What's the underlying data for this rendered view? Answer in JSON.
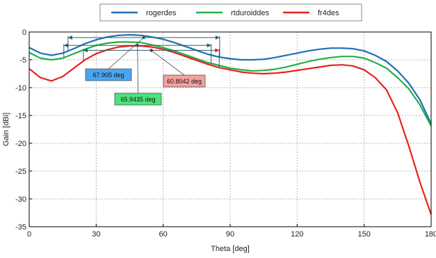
{
  "chart_data": {
    "type": "line",
    "xlabel": "Theta [deg]",
    "ylabel": "Gain [dBi]",
    "xlim": [
      0,
      180
    ],
    "ylim": [
      -35,
      0
    ],
    "xticks": [
      0,
      30,
      60,
      90,
      120,
      150,
      180
    ],
    "yticks": [
      0,
      -5,
      -10,
      -15,
      -20,
      -25,
      -30,
      -35
    ],
    "grid": true,
    "legend_position": "top-center",
    "series": [
      {
        "name": "rogerdes",
        "color": "#1f6fb5",
        "x": [
          0,
          5,
          10,
          15,
          20,
          25,
          30,
          35,
          40,
          45,
          50,
          55,
          60,
          65,
          70,
          75,
          80,
          85,
          90,
          95,
          100,
          105,
          110,
          115,
          120,
          125,
          130,
          135,
          140,
          145,
          150,
          155,
          160,
          165,
          170,
          175,
          180
        ],
        "y": [
          -2.8,
          -3.8,
          -4.2,
          -3.8,
          -3.0,
          -2.1,
          -1.4,
          -0.9,
          -0.6,
          -0.5,
          -0.6,
          -0.9,
          -1.3,
          -1.9,
          -2.6,
          -3.3,
          -4.0,
          -4.5,
          -4.8,
          -5.0,
          -5.0,
          -4.9,
          -4.6,
          -4.2,
          -3.8,
          -3.4,
          -3.1,
          -2.9,
          -2.9,
          -3.0,
          -3.4,
          -4.2,
          -5.3,
          -7.0,
          -9.2,
          -12.2,
          -16.5
        ]
      },
      {
        "name": "rtduroiddes",
        "color": "#22b04b",
        "x": [
          0,
          5,
          10,
          15,
          20,
          25,
          30,
          35,
          40,
          45,
          50,
          55,
          60,
          65,
          70,
          75,
          80,
          85,
          90,
          95,
          100,
          105,
          110,
          115,
          120,
          125,
          130,
          135,
          140,
          145,
          150,
          155,
          160,
          165,
          170,
          175,
          180
        ],
        "y": [
          -3.7,
          -4.7,
          -5.0,
          -4.7,
          -3.9,
          -3.1,
          -2.4,
          -2.0,
          -1.8,
          -1.8,
          -1.9,
          -2.3,
          -2.8,
          -3.4,
          -4.1,
          -4.8,
          -5.5,
          -6.0,
          -6.5,
          -6.8,
          -7.0,
          -6.9,
          -6.7,
          -6.3,
          -5.8,
          -5.3,
          -4.9,
          -4.6,
          -4.4,
          -4.4,
          -4.7,
          -5.5,
          -6.5,
          -8.2,
          -10.2,
          -13.1,
          -16.9
        ]
      },
      {
        "name": "fr4des",
        "color": "#e8201e",
        "x": [
          0,
          5,
          10,
          15,
          20,
          25,
          30,
          35,
          40,
          45,
          50,
          55,
          60,
          65,
          70,
          75,
          80,
          85,
          90,
          95,
          100,
          105,
          110,
          115,
          120,
          125,
          130,
          135,
          140,
          145,
          150,
          155,
          160,
          165,
          170,
          175,
          180
        ],
        "y": [
          -6.6,
          -8.2,
          -8.8,
          -8.0,
          -6.5,
          -5.0,
          -3.9,
          -3.2,
          -2.7,
          -2.5,
          -2.5,
          -2.7,
          -3.1,
          -3.7,
          -4.4,
          -5.1,
          -5.8,
          -6.4,
          -6.8,
          -7.2,
          -7.4,
          -7.5,
          -7.4,
          -7.2,
          -6.9,
          -6.6,
          -6.3,
          -6.0,
          -5.9,
          -6.1,
          -6.8,
          -8.2,
          -10.4,
          -14.5,
          -20.5,
          -27.0,
          -32.8
        ]
      }
    ],
    "annotations": [
      {
        "series": "rogerdes",
        "label": "67.905 deg",
        "x_start": 17.4,
        "x_end": 85.3,
        "y": -1.0,
        "marker_x": 51.3,
        "fill": "#4aa5f0"
      },
      {
        "series": "rtduroiddes",
        "label": "65.9435 deg",
        "x_start": 15.5,
        "x_end": 81.5,
        "y": -2.4,
        "marker_x": 48.5,
        "fill": "#4de27a"
      },
      {
        "series": "fr4des",
        "label": "60.8042 deg",
        "x_start": 24.3,
        "x_end": 85.1,
        "y": -3.3,
        "marker_x": 54.7,
        "fill": "#f5a0a0"
      }
    ]
  }
}
